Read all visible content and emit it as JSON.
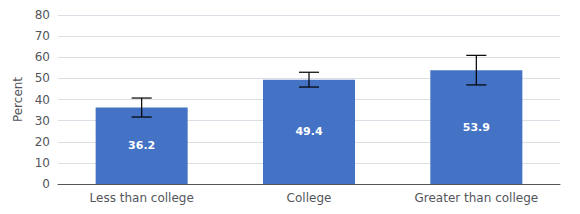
{
  "chart_data": {
    "type": "bar",
    "categories": [
      "Less than college",
      "College",
      "Greater than college"
    ],
    "values": [
      36.2,
      49.4,
      53.9
    ],
    "errors": [
      4.5,
      3.5,
      7.0
    ],
    "color": "#4472C4",
    "ylabel": "Percent",
    "ylim": [
      0,
      80
    ],
    "yticks": [
      0,
      10,
      20,
      30,
      40,
      50,
      60,
      70,
      80
    ],
    "grid": true,
    "data_labels": true
  }
}
